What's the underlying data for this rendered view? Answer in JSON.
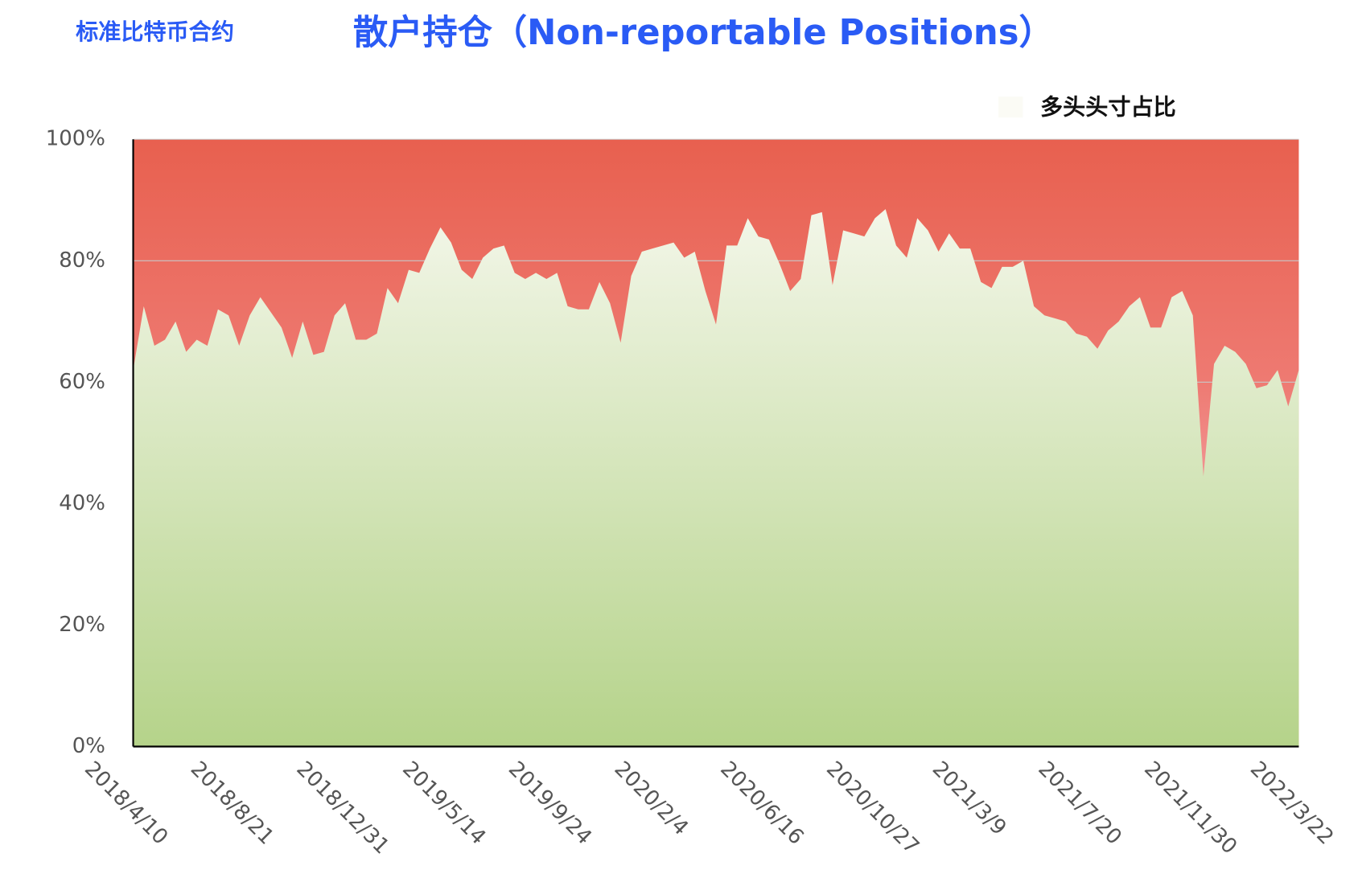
{
  "chart_data": {
    "type": "area",
    "title": "散户持仓（Non-reportable Positions）",
    "subtitle": "标准比特币合约",
    "categories": [
      "2018/4/10",
      null,
      null,
      null,
      null,
      null,
      null,
      null,
      null,
      null,
      "2018/8/21",
      null,
      null,
      null,
      null,
      null,
      null,
      null,
      null,
      null,
      "2018/12/31",
      null,
      null,
      null,
      null,
      null,
      null,
      null,
      null,
      null,
      "2019/5/14",
      null,
      null,
      null,
      null,
      null,
      null,
      null,
      null,
      null,
      "2019/9/24",
      null,
      null,
      null,
      null,
      null,
      null,
      null,
      null,
      null,
      "2020/2/4",
      null,
      null,
      null,
      null,
      null,
      null,
      null,
      null,
      null,
      "2020/6/16",
      null,
      null,
      null,
      null,
      null,
      null,
      null,
      null,
      null,
      "2020/10/27",
      null,
      null,
      null,
      null,
      null,
      null,
      null,
      null,
      null,
      "2021/3/9",
      null,
      null,
      null,
      null,
      null,
      null,
      null,
      null,
      null,
      "2021/7/20",
      null,
      null,
      null,
      null,
      null,
      null,
      null,
      null,
      null,
      "2021/11/30",
      null,
      null,
      null,
      null,
      null,
      null,
      null,
      null,
      null,
      "2022/3/22"
    ],
    "series": [
      {
        "name": "多头头寸占比",
        "color": "#b5d38a",
        "values": [
          62,
          72.5,
          66,
          67,
          70,
          65,
          67,
          66,
          72,
          71,
          66,
          71,
          74,
          71.5,
          69,
          64,
          70,
          64.5,
          65,
          71,
          73,
          67,
          67,
          68,
          75.5,
          73,
          78.5,
          78,
          82,
          85.5,
          83,
          78.5,
          77,
          80.5,
          82,
          82.5,
          78,
          77,
          78,
          77,
          78,
          72.5,
          72,
          72,
          76.5,
          73,
          66.5,
          77.5,
          81.5,
          82,
          82.5,
          83,
          80.5,
          81.5,
          75,
          69.5,
          82.5,
          82.5,
          87,
          84,
          83.5,
          79.5,
          75,
          77,
          87.5,
          88,
          76,
          85,
          84.5,
          84,
          87,
          88.5,
          82.5,
          80.5,
          87,
          85,
          81.5,
          84.5,
          82,
          82,
          76.5,
          75.5,
          79,
          79,
          80,
          72.5,
          71,
          70.5,
          70,
          68,
          67.5,
          65.5,
          68.5,
          70,
          72.5,
          74,
          69,
          69,
          74,
          75,
          71,
          44.5,
          63,
          66,
          65,
          63,
          59,
          59.5,
          62,
          56,
          62
        ]
      }
    ],
    "background_color": "#e8604f",
    "ylim": [
      0,
      100
    ],
    "yticks": [
      {
        "value": 0,
        "label": "0%"
      },
      {
        "value": 20,
        "label": "20%"
      },
      {
        "value": 40,
        "label": "40%"
      },
      {
        "value": 60,
        "label": "60%"
      },
      {
        "value": 80,
        "label": "80%"
      },
      {
        "value": 100,
        "label": "100%"
      }
    ],
    "grid": true
  }
}
